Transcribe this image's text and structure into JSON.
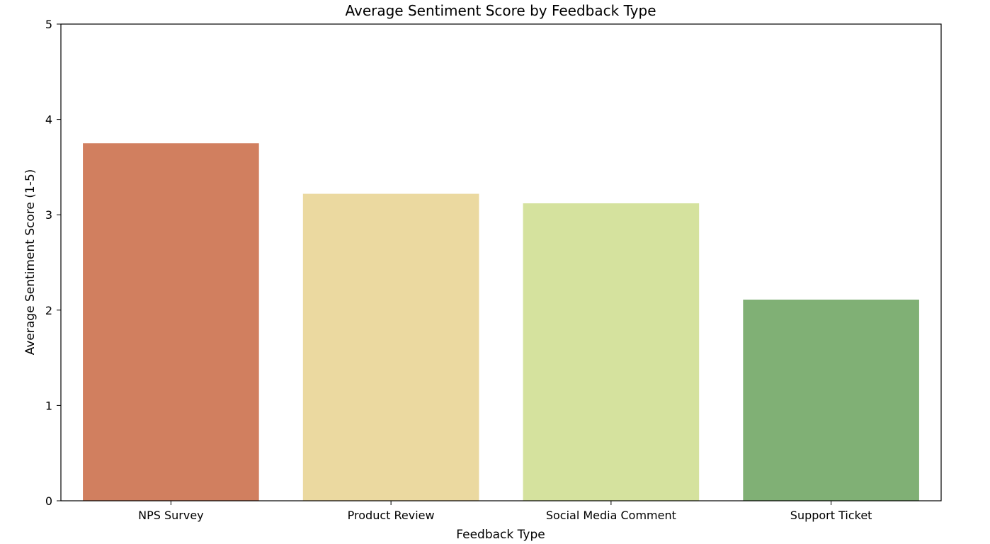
{
  "chart_data": {
    "type": "bar",
    "title": "Average Sentiment Score by Feedback Type",
    "xlabel": "Feedback Type",
    "ylabel": "Average Sentiment Score (1-5)",
    "categories": [
      "NPS Survey",
      "Product Review",
      "Social Media Comment",
      "Support Ticket"
    ],
    "values": [
      3.75,
      3.22,
      3.12,
      2.11
    ],
    "colors": [
      "#d17f5f",
      "#ebd9a0",
      "#d5e29e",
      "#80b075"
    ],
    "ylim": [
      0,
      5
    ],
    "yticks": [
      0,
      1,
      2,
      3,
      4,
      5
    ],
    "grid": false,
    "legend": "none"
  }
}
